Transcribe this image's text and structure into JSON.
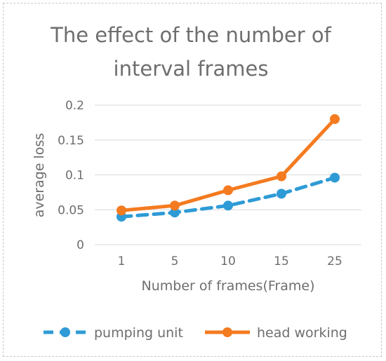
{
  "chart_data": {
    "type": "line",
    "title_lines": [
      "The effect of the number of",
      "interval frames"
    ],
    "xlabel": "Number of frames(Frame)",
    "ylabel": "average  loss",
    "categories": [
      "1",
      "5",
      "10",
      "15",
      "25"
    ],
    "ylim": [
      0,
      0.2
    ],
    "yticks": [
      0,
      0.05,
      0.1,
      0.15,
      0.2
    ],
    "ytick_labels": [
      "0",
      "0.05",
      "0.1",
      "0.15",
      "0.2"
    ],
    "grid": true,
    "legend_position": "bottom",
    "series": [
      {
        "name": "pumping unit",
        "values": [
          0.04,
          0.046,
          0.056,
          0.073,
          0.096
        ],
        "color": "#2e9bd6",
        "dashed": true
      },
      {
        "name": "head working",
        "values": [
          0.049,
          0.056,
          0.078,
          0.098,
          0.18
        ],
        "color": "#f47b20",
        "dashed": false
      }
    ]
  }
}
